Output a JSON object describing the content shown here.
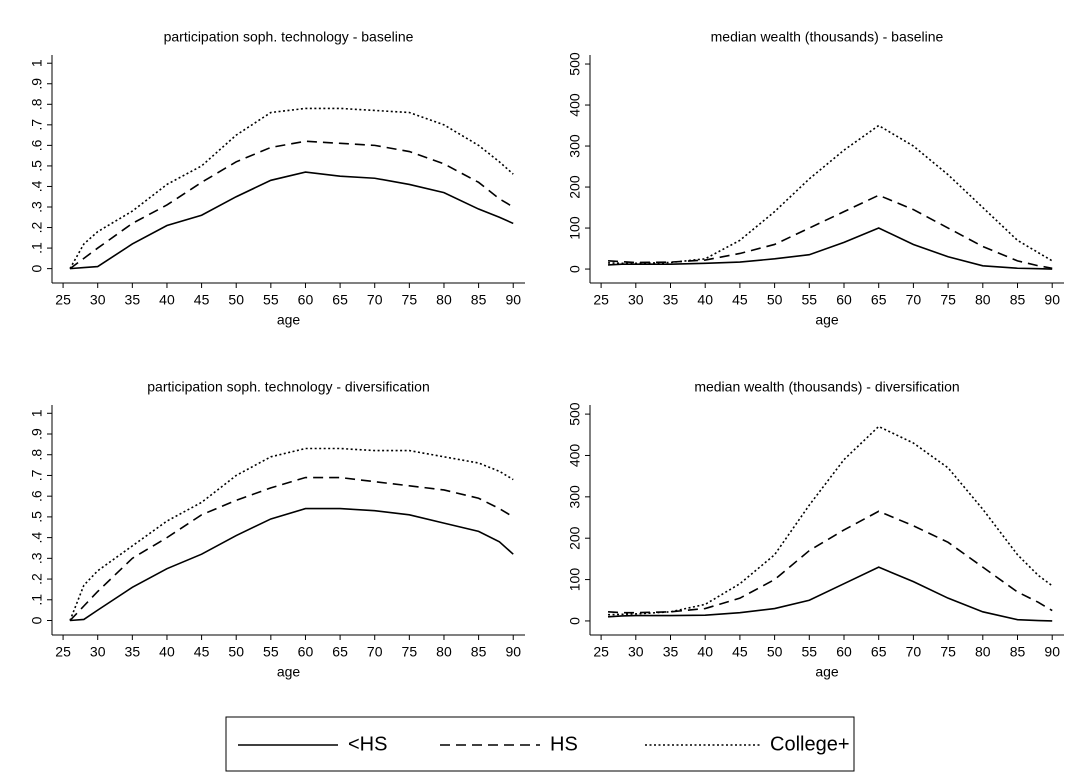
{
  "chart_data": [
    {
      "type": "line",
      "title": "participation soph. technology - baseline",
      "xlabel": "age",
      "x": [
        26,
        28,
        30,
        35,
        40,
        45,
        50,
        55,
        60,
        65,
        70,
        75,
        80,
        85,
        88,
        90
      ],
      "xlim": [
        23.4,
        91.7
      ],
      "xticks": [
        25,
        30,
        35,
        40,
        45,
        50,
        55,
        60,
        65,
        70,
        75,
        80,
        85,
        90
      ],
      "ylim": [
        -0.07,
        1.04
      ],
      "yticks": [
        0,
        {
          "value": 0.1,
          "label": ".1"
        },
        {
          "value": 0.2,
          "label": ".2"
        },
        {
          "value": 0.3,
          "label": ".3"
        },
        {
          "value": 0.4,
          "label": ".4"
        },
        {
          "value": 0.5,
          "label": ".5"
        },
        {
          "value": 0.6,
          "label": ".6"
        },
        {
          "value": 0.7,
          "label": ".7"
        },
        {
          "value": 0.8,
          "label": ".8"
        },
        {
          "value": 0.9,
          "label": ".9"
        },
        1
      ],
      "series": [
        {
          "values": [
            0,
            0.005,
            0.01,
            0.12,
            0.21,
            0.26,
            0.35,
            0.43,
            0.47,
            0.45,
            0.44,
            0.41,
            0.37,
            0.29,
            0.25,
            0.22
          ]
        },
        {
          "values": [
            0,
            0.05,
            0.1,
            0.22,
            0.31,
            0.42,
            0.52,
            0.59,
            0.62,
            0.61,
            0.6,
            0.57,
            0.51,
            0.42,
            0.34,
            0.3
          ]
        },
        {
          "values": [
            0,
            0.12,
            0.18,
            0.28,
            0.41,
            0.5,
            0.65,
            0.76,
            0.78,
            0.78,
            0.77,
            0.76,
            0.7,
            0.6,
            0.52,
            0.46
          ]
        }
      ]
    },
    {
      "type": "line",
      "title": "median wealth (thousands) - baseline",
      "xlabel": "age",
      "x": [
        26,
        28,
        30,
        35,
        40,
        45,
        50,
        55,
        60,
        65,
        70,
        75,
        80,
        85,
        88,
        90
      ],
      "xlim": [
        23.4,
        91.7
      ],
      "xticks": [
        25,
        30,
        35,
        40,
        45,
        50,
        55,
        60,
        65,
        70,
        75,
        80,
        85,
        90
      ],
      "ylim": [
        -34,
        522
      ],
      "yticks": [
        0,
        100,
        200,
        300,
        400,
        500
      ],
      "series": [
        {
          "values": [
            10,
            12,
            12,
            12,
            14,
            17,
            25,
            35,
            65,
            100,
            60,
            30,
            8,
            2,
            1,
            0
          ]
        },
        {
          "values": [
            20,
            18,
            16,
            17,
            22,
            38,
            60,
            100,
            140,
            180,
            145,
            100,
            55,
            20,
            8,
            2
          ]
        },
        {
          "values": [
            15,
            14,
            14,
            16,
            25,
            70,
            140,
            220,
            290,
            350,
            300,
            230,
            150,
            70,
            40,
            20
          ]
        }
      ]
    },
    {
      "type": "line",
      "title": "participation soph. technology - diversification",
      "xlabel": "age",
      "x": [
        26,
        28,
        30,
        35,
        40,
        45,
        50,
        55,
        60,
        65,
        70,
        75,
        80,
        85,
        88,
        90
      ],
      "xlim": [
        23.4,
        91.7
      ],
      "xticks": [
        25,
        30,
        35,
        40,
        45,
        50,
        55,
        60,
        65,
        70,
        75,
        80,
        85,
        90
      ],
      "ylim": [
        -0.07,
        1.04
      ],
      "yticks": [
        0,
        {
          "value": 0.1,
          "label": ".1"
        },
        {
          "value": 0.2,
          "label": ".2"
        },
        {
          "value": 0.3,
          "label": ".3"
        },
        {
          "value": 0.4,
          "label": ".4"
        },
        {
          "value": 0.5,
          "label": ".5"
        },
        {
          "value": 0.6,
          "label": ".6"
        },
        {
          "value": 0.7,
          "label": ".7"
        },
        {
          "value": 0.8,
          "label": ".8"
        },
        {
          "value": 0.9,
          "label": ".9"
        },
        1
      ],
      "series": [
        {
          "values": [
            0,
            0.005,
            0.05,
            0.16,
            0.25,
            0.32,
            0.41,
            0.49,
            0.54,
            0.54,
            0.53,
            0.51,
            0.47,
            0.43,
            0.38,
            0.32
          ]
        },
        {
          "values": [
            0,
            0.07,
            0.14,
            0.3,
            0.4,
            0.51,
            0.58,
            0.64,
            0.69,
            0.69,
            0.67,
            0.65,
            0.63,
            0.59,
            0.54,
            0.5
          ]
        },
        {
          "values": [
            0,
            0.17,
            0.24,
            0.36,
            0.48,
            0.57,
            0.7,
            0.79,
            0.83,
            0.83,
            0.82,
            0.82,
            0.79,
            0.76,
            0.72,
            0.68
          ]
        }
      ]
    },
    {
      "type": "line",
      "title": "median wealth (thousands) - diversification",
      "xlabel": "age",
      "x": [
        26,
        28,
        30,
        35,
        40,
        45,
        50,
        55,
        60,
        65,
        70,
        75,
        80,
        85,
        88,
        90
      ],
      "xlim": [
        23.4,
        91.7
      ],
      "xticks": [
        25,
        30,
        35,
        40,
        45,
        50,
        55,
        60,
        65,
        70,
        75,
        80,
        85,
        90
      ],
      "ylim": [
        -34,
        522
      ],
      "yticks": [
        0,
        100,
        200,
        300,
        400,
        500
      ],
      "series": [
        {
          "values": [
            10,
            12,
            13,
            13,
            14,
            20,
            30,
            50,
            90,
            130,
            95,
            55,
            22,
            3,
            1,
            0
          ]
        },
        {
          "values": [
            22,
            20,
            20,
            22,
            30,
            55,
            100,
            170,
            220,
            265,
            230,
            190,
            130,
            70,
            45,
            25
          ]
        },
        {
          "values": [
            15,
            16,
            17,
            22,
            40,
            90,
            160,
            280,
            390,
            470,
            430,
            370,
            270,
            160,
            110,
            85
          ]
        }
      ]
    }
  ],
  "legend": {
    "entries": [
      {
        "name": "<HS",
        "dash": "solid"
      },
      {
        "name": "HS",
        "dash": "dashed"
      },
      {
        "name": "College+",
        "dash": "dotted"
      }
    ],
    "color": "#000000"
  }
}
